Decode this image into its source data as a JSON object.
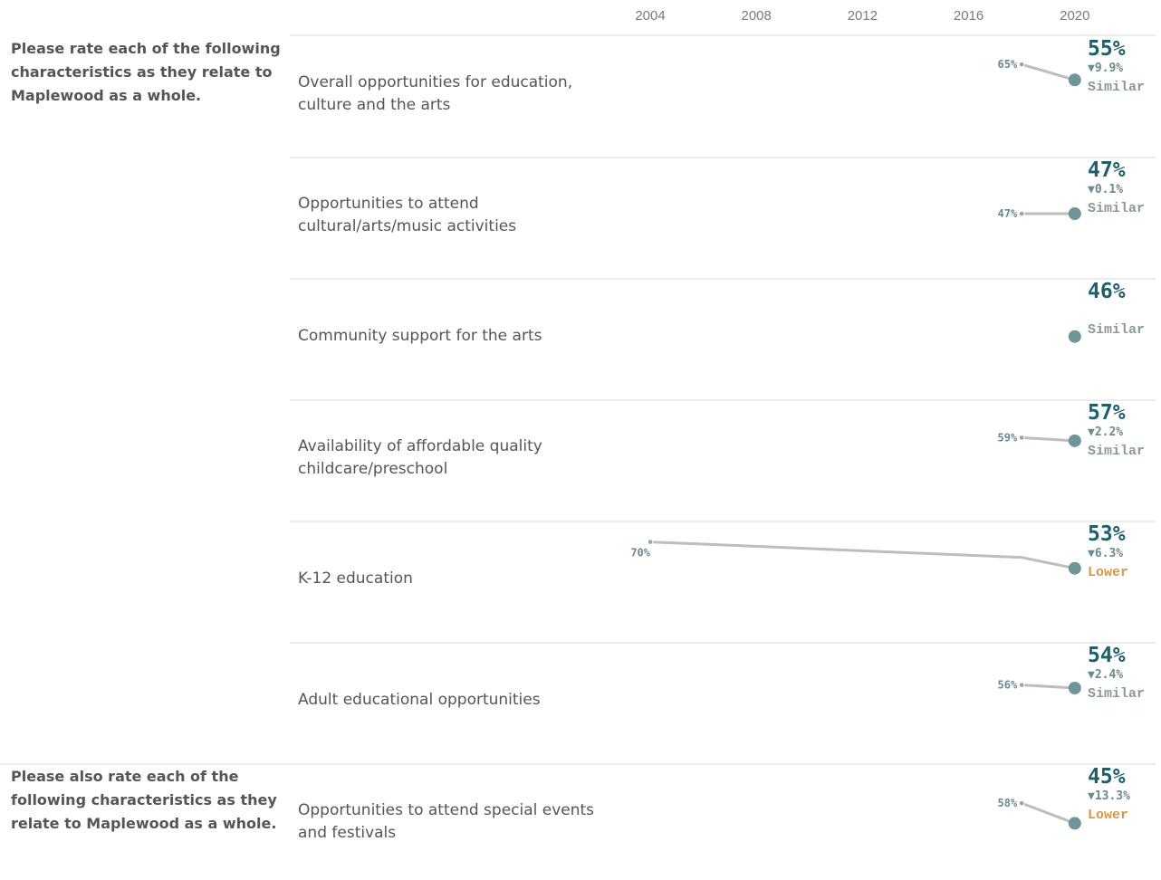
{
  "chart_data": {
    "type": "line",
    "x_axis_years": [
      "2004",
      "2008",
      "2012",
      "2016",
      "2020"
    ],
    "xlim": [
      2000,
      2022
    ],
    "groups": [
      {
        "question_lines": [
          "Please rate each of the following",
          "characteristics as they relate to",
          "Maplewood as a whole."
        ],
        "items": [
          {
            "label_lines": [
              "Overall opportunities for education,",
              "culture and the arts"
            ],
            "points": [
              {
                "x": 2018,
                "y": 65
              },
              {
                "x": 2020,
                "y": 55
              }
            ],
            "prev_label": "65%",
            "latest_label": "55%",
            "change": "▼9.9%",
            "comparison": "Similar"
          },
          {
            "label_lines": [
              "Opportunities to attend",
              "cultural/arts/music activities"
            ],
            "points": [
              {
                "x": 2018,
                "y": 47
              },
              {
                "x": 2020,
                "y": 47
              }
            ],
            "prev_label": "47%",
            "latest_label": "47%",
            "change": "▼0.1%",
            "comparison": "Similar"
          },
          {
            "label_lines": [
              "Community support for the arts"
            ],
            "points": [
              {
                "x": 2020,
                "y": 46
              }
            ],
            "prev_label": "",
            "latest_label": "46%",
            "change": "",
            "comparison": "Similar"
          },
          {
            "label_lines": [
              "Availability of affordable quality",
              "childcare/preschool"
            ],
            "points": [
              {
                "x": 2018,
                "y": 59
              },
              {
                "x": 2020,
                "y": 57
              }
            ],
            "prev_label": "59%",
            "latest_label": "57%",
            "change": "▼2.2%",
            "comparison": "Similar"
          },
          {
            "label_lines": [
              "K-12 education"
            ],
            "points": [
              {
                "x": 2004,
                "y": 70
              },
              {
                "x": 2018,
                "y": 60
              },
              {
                "x": 2020,
                "y": 53
              }
            ],
            "prev_label": "70%",
            "latest_label": "53%",
            "change": "▼6.3%",
            "comparison": "Lower"
          },
          {
            "label_lines": [
              "Adult educational opportunities"
            ],
            "points": [
              {
                "x": 2018,
                "y": 56
              },
              {
                "x": 2020,
                "y": 54
              }
            ],
            "prev_label": "56%",
            "latest_label": "54%",
            "change": "▼2.4%",
            "comparison": "Similar"
          }
        ]
      },
      {
        "question_lines": [
          "Please also rate each of the",
          "following characteristics as they",
          "relate to Maplewood as a whole."
        ],
        "items": [
          {
            "label_lines": [
              "Opportunities to attend special events",
              "and festivals"
            ],
            "points": [
              {
                "x": 2018,
                "y": 58
              },
              {
                "x": 2020,
                "y": 45
              }
            ],
            "prev_label": "58%",
            "latest_label": "45%",
            "change": "▼13.3%",
            "comparison": "Lower"
          }
        ]
      }
    ]
  },
  "colors": {
    "line": "#bdbdbd",
    "point": "#6f9599",
    "latest_value": "#1f5f6d",
    "change": "#6a8a8e",
    "similar": "#8a9a8f",
    "lower": "#d4974a",
    "divider": "#d9d9d9"
  }
}
